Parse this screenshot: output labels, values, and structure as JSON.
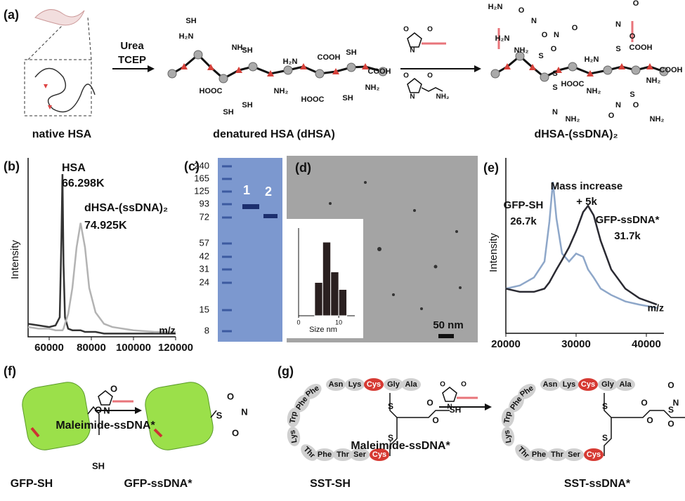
{
  "panels": {
    "a": {
      "label": "(a)",
      "reagents": [
        "Urea",
        "TCEP"
      ],
      "captions": [
        "native HSA",
        "denatured HSA (dHSA)",
        "dHSA-(ssDNA)₂"
      ],
      "dhsa_groups": [
        "SH",
        "H₂N",
        "NH₂",
        "SH",
        "H₂N",
        "SH",
        "COOH",
        "HOOC",
        "SH",
        "NH₂",
        "COOH",
        "HOOC",
        "SH",
        "NH₂",
        "SH"
      ],
      "product_groups": [
        "H₂N",
        "O",
        "N",
        "O",
        "H₂N",
        "NH₂",
        "S",
        "O",
        "N",
        "O",
        "S",
        "H₂N",
        "COOH",
        "O",
        "N",
        "O",
        "S",
        "COOH",
        "NH₂",
        "HOOC",
        "S",
        "NH₂",
        "S",
        "N",
        "O",
        "O",
        "N",
        "NH₂",
        "NH₂"
      ],
      "maleimide_groups": [
        "O",
        "N",
        "O",
        "O",
        "N",
        "NH₂",
        "O"
      ]
    },
    "b": {
      "type": "line",
      "label": "(b)",
      "ylabel": "Intensity",
      "xlabel": "m/z",
      "annotations": [
        "HSA",
        "66.298K",
        "dHSA-(ssDNA)₂",
        "74.925K"
      ],
      "x": [
        50000,
        55000,
        60000,
        63000,
        65000,
        65800,
        66300,
        66800,
        67500,
        69000,
        71000,
        73000,
        74900,
        77000,
        79000,
        82000,
        86000,
        90000,
        100000,
        110000,
        120000
      ],
      "series": [
        {
          "name": "HSA",
          "color": "#333333",
          "values": [
            8,
            7,
            6,
            7,
            12,
            60,
            100,
            45,
            12,
            5,
            4,
            4,
            4,
            3,
            3,
            3,
            2,
            2,
            2,
            2,
            2
          ]
        },
        {
          "name": "dHSA-(ssDNA)₂",
          "color": "#b3b3b3",
          "values": [
            6,
            5,
            5,
            4,
            4,
            4,
            4,
            5,
            8,
            14,
            30,
            55,
            70,
            55,
            30,
            15,
            8,
            6,
            4,
            3,
            3
          ]
        }
      ],
      "xlim": [
        50000,
        120000
      ],
      "ylim": [
        0,
        110
      ],
      "xticks": [
        60000,
        80000,
        100000,
        120000
      ]
    },
    "c": {
      "label": "(c)",
      "ladder": [
        240,
        165,
        125,
        93,
        72,
        57,
        42,
        31,
        24,
        15,
        8
      ],
      "lanes": [
        "1",
        "2"
      ]
    },
    "d": {
      "type": "histogram",
      "label": "(d)",
      "scale_bar": "50 nm",
      "xlabel": "Size nm",
      "bins": [
        4,
        6,
        8,
        10,
        12
      ],
      "counts": [
        19,
        42,
        25,
        15
      ],
      "xlim": [
        0,
        14
      ],
      "ylim": [
        0,
        50
      ],
      "xticks": [
        0,
        10
      ]
    },
    "e": {
      "type": "line",
      "label": "(e)",
      "ylabel": "Intensity",
      "xlabel": "m/z",
      "annotations": [
        "Mass increase",
        "+ 5k",
        "GFP-SH",
        "26.7k",
        "GFP-ssDNA*",
        "31.7k"
      ],
      "x": [
        20000,
        22000,
        24000,
        25500,
        26200,
        26700,
        27200,
        28000,
        29000,
        30000,
        31000,
        31700,
        32500,
        33500,
        35000,
        37000,
        39000,
        41500
      ],
      "series": [
        {
          "name": "GFP-SH",
          "color": "#8ea7c9",
          "values": [
            28,
            30,
            35,
            45,
            70,
            95,
            72,
            50,
            45,
            50,
            48,
            40,
            35,
            28,
            24,
            20,
            18,
            16
          ]
        },
        {
          "name": "GFP-ssDNA*",
          "color": "#2a2a32",
          "values": [
            28,
            26,
            26,
            28,
            32,
            36,
            40,
            46,
            54,
            64,
            76,
            80,
            74,
            58,
            40,
            28,
            22,
            18
          ]
        }
      ],
      "xlim": [
        20000,
        42500
      ],
      "ylim": [
        0,
        110
      ],
      "xticks": [
        20000,
        30000,
        40000
      ]
    },
    "f": {
      "label": "(f)",
      "reagent": "Maleimide-ssDNA*",
      "captions": [
        "GFP-SH",
        "GFP-ssDNA*"
      ],
      "groups": [
        "SH",
        "S",
        "O",
        "N",
        "O",
        "O",
        "N",
        "O"
      ]
    },
    "g": {
      "label": "(g)",
      "reagent": "Maleimide-ssDNA*",
      "captions": [
        "SST-SH",
        "SST-ssDNA*"
      ],
      "sst_sh": {
        "residues": [
          "Phe",
          "Phe",
          "Trp",
          "Lys",
          "Thr",
          "Phe",
          "Thr",
          "Ser",
          "Cys",
          "Asn",
          "Lys",
          "Cys",
          "Gly",
          "Ala"
        ],
        "groups": [
          "S",
          "S",
          "O",
          "O",
          "SH"
        ]
      },
      "sst_ssdna": {
        "residues": [
          "Phe",
          "Phe",
          "Trp",
          "Lys",
          "Thr",
          "Phe",
          "Thr",
          "Ser",
          "Cys",
          "Asn",
          "Lys",
          "Cys",
          "Gly",
          "Ala"
        ],
        "groups": [
          "S",
          "S",
          "O",
          "O",
          "S",
          "O",
          "N",
          "O"
        ]
      },
      "maleimide_groups": [
        "O",
        "N",
        "O"
      ]
    }
  }
}
